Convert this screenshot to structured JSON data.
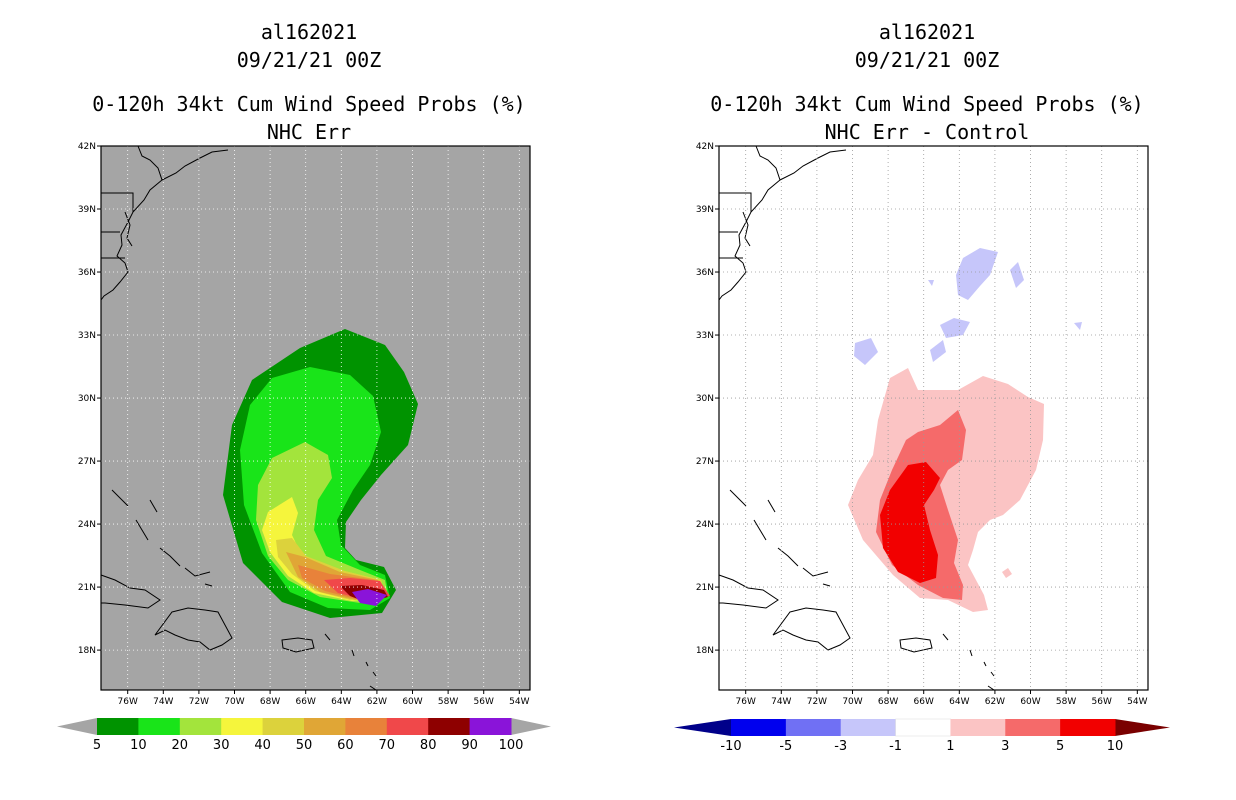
{
  "panels": [
    {
      "storm_id": "al162021",
      "datetime": "09/21/21 00Z",
      "product": "0-120h 34kt Cum Wind Speed Probs (%)",
      "subtitle": "NHC Err",
      "colorbar": {
        "labels": [
          "5",
          "10",
          "20",
          "30",
          "40",
          "50",
          "60",
          "70",
          "80",
          "90",
          "100"
        ],
        "colors": [
          "#009300",
          "#19e419",
          "#a3e43c",
          "#f5f53c",
          "#dcd23c",
          "#e0a636",
          "#e8823a",
          "#f0484a",
          "#8e0000",
          "#8a14d9"
        ],
        "end_color": "#a5a5a5"
      }
    },
    {
      "storm_id": "al162021",
      "datetime": "09/21/21 00Z",
      "product": "0-120h 34kt Cum Wind Speed Probs (%)",
      "subtitle": "NHC Err - Control",
      "colorbar": {
        "labels": [
          "-10",
          "-5",
          "-3",
          "-1",
          "1",
          "3",
          "5",
          "10"
        ],
        "colors": [
          "#0000ee",
          "#7070f4",
          "#c6c6fa",
          "#ffffff",
          "#fbc4c4",
          "#f56a6a",
          "#f20000"
        ],
        "left_end_color": "#00008a",
        "right_end_color": "#7a0000"
      }
    }
  ],
  "map": {
    "lat_labels": [
      "42N",
      "39N",
      "36N",
      "33N",
      "30N",
      "27N",
      "24N",
      "21N",
      "18N"
    ],
    "lon_labels": [
      "76W",
      "74W",
      "72W",
      "70W",
      "68W",
      "66W",
      "64W",
      "62W",
      "60W",
      "58W",
      "56W",
      "54W"
    ],
    "lat_values": [
      42,
      39,
      36,
      33,
      30,
      27,
      24,
      21,
      18
    ],
    "lon_values": [
      -76,
      -74,
      -72,
      -70,
      -68,
      -66,
      -64,
      -62,
      -60,
      -58,
      -56,
      -54
    ],
    "lon_range": [
      -77.5,
      -53.4
    ],
    "lat_range": [
      16.1,
      42.0
    ],
    "background_color": "#a5a5a5"
  }
}
